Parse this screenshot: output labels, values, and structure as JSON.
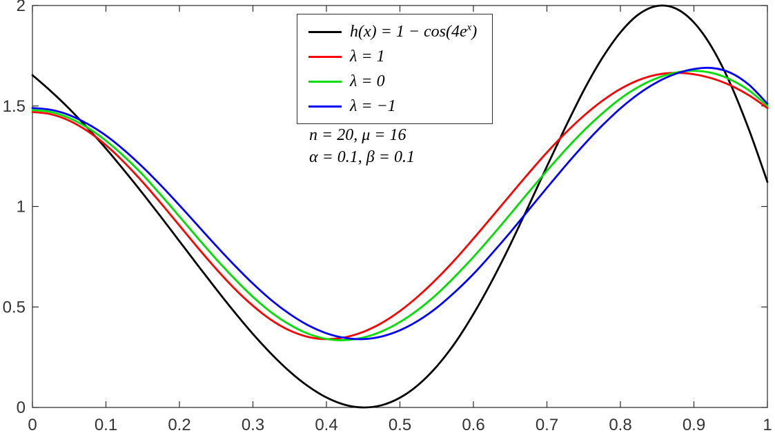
{
  "figure": {
    "background": "#ffffff",
    "axis_color": "#262626",
    "tick_label_color": "#333333"
  },
  "legend": {
    "entries": [
      {
        "color": "#000000",
        "label_pre": "h(x) = 1 − cos(4e",
        "label_sup": "x",
        "label_post": ")"
      },
      {
        "color": "#ff0000",
        "label_pre": "λ = 1",
        "label_sup": "",
        "label_post": ""
      },
      {
        "color": "#00dd00",
        "label_pre": "λ = 0",
        "label_sup": "",
        "label_post": ""
      },
      {
        "color": "#0000ff",
        "label_pre": "λ = −1",
        "label_sup": "",
        "label_post": ""
      }
    ]
  },
  "annotations": {
    "line1": "n = 20,  μ = 16",
    "line2": "α = 0.1,  β = 0.1"
  },
  "chart_data": {
    "type": "line",
    "title": "",
    "xlabel": "",
    "ylabel": "",
    "xlim": [
      0,
      1
    ],
    "ylim": [
      0,
      2
    ],
    "grid": false,
    "box": true,
    "legend_position": "upper-center-left",
    "x_ticks": [
      0,
      0.1,
      0.2,
      0.3,
      0.4,
      0.5,
      0.6,
      0.7,
      0.8,
      0.9,
      1
    ],
    "x_tick_labels": [
      "0",
      "0.1",
      "0.2",
      "0.3",
      "0.4",
      "0.5",
      "0.6",
      "0.7",
      "0.8",
      "0.9",
      "1"
    ],
    "y_ticks": [
      0,
      0.5,
      1,
      1.5,
      2
    ],
    "y_tick_labels": [
      "0",
      "0.5",
      "1",
      "1.5",
      "2"
    ],
    "x": [
      0,
      0.025,
      0.05,
      0.075,
      0.1,
      0.125,
      0.15,
      0.175,
      0.2,
      0.225,
      0.25,
      0.275,
      0.3,
      0.325,
      0.35,
      0.375,
      0.4,
      0.425,
      0.45,
      0.475,
      0.5,
      0.525,
      0.55,
      0.575,
      0.6,
      0.625,
      0.65,
      0.675,
      0.7,
      0.725,
      0.75,
      0.775,
      0.8,
      0.825,
      0.85,
      0.875,
      0.9,
      0.925,
      0.95,
      0.975,
      1
    ],
    "series": [
      {
        "name": "h(x) = 1 − cos(4e^x)",
        "color": "#000000",
        "width": 2.8,
        "values": [
          1.6536,
          1.574,
          1.4866,
          1.3903,
          1.2885,
          1.1788,
          1.065,
          0.9474,
          0.8276,
          0.7074,
          0.5888,
          0.4741,
          0.3658,
          0.2666,
          0.1787,
          0.1059,
          0.0498,
          0.0135,
          0.0,
          0.0111,
          0.0482,
          0.1124,
          0.2038,
          0.3214,
          0.4649,
          0.6282,
          0.8092,
          1.0022,
          1.1998,
          1.393,
          1.5769,
          1.7372,
          1.8662,
          1.9566,
          1.9978,
          1.9855,
          1.9156,
          1.7883,
          1.6071,
          1.3811,
          1.1222
        ]
      },
      {
        "name": "λ = 1",
        "color": "#ff0000",
        "width": 2.8,
        "values": [
          1.47,
          1.459,
          1.427,
          1.375,
          1.305,
          1.219,
          1.121,
          1.015,
          0.905,
          0.795,
          0.689,
          0.591,
          0.506,
          0.435,
          0.383,
          0.351,
          0.34,
          0.349,
          0.376,
          0.42,
          0.48,
          0.554,
          0.64,
          0.736,
          0.84,
          0.948,
          1.057,
          1.165,
          1.269,
          1.365,
          1.451,
          1.525,
          1.585,
          1.629,
          1.656,
          1.665,
          1.658,
          1.637,
          1.602,
          1.553,
          1.49
        ]
      },
      {
        "name": "λ = 0",
        "color": "#00dd00",
        "width": 2.8,
        "values": [
          1.48,
          1.47,
          1.44,
          1.392,
          1.327,
          1.248,
          1.158,
          1.056,
          0.95,
          0.843,
          0.738,
          0.64,
          0.55,
          0.473,
          0.412,
          0.367,
          0.341,
          0.335,
          0.348,
          0.378,
          0.425,
          0.487,
          0.563,
          0.652,
          0.749,
          0.853,
          0.961,
          1.071,
          1.178,
          1.281,
          1.377,
          1.462,
          1.537,
          1.596,
          1.639,
          1.666,
          1.675,
          1.664,
          1.631,
          1.577,
          1.5
        ]
      },
      {
        "name": "λ = −1",
        "color": "#0000ff",
        "width": 2.8,
        "values": [
          1.49,
          1.481,
          1.455,
          1.411,
          1.353,
          1.28,
          1.196,
          1.104,
          1.006,
          0.905,
          0.804,
          0.707,
          0.616,
          0.534,
          0.465,
          0.409,
          0.369,
          0.346,
          0.34,
          0.353,
          0.384,
          0.432,
          0.496,
          0.575,
          0.664,
          0.765,
          0.871,
          0.982,
          1.093,
          1.202,
          1.306,
          1.402,
          1.488,
          1.561,
          1.619,
          1.66,
          1.684,
          1.689,
          1.665,
          1.605,
          1.511
        ]
      }
    ]
  }
}
